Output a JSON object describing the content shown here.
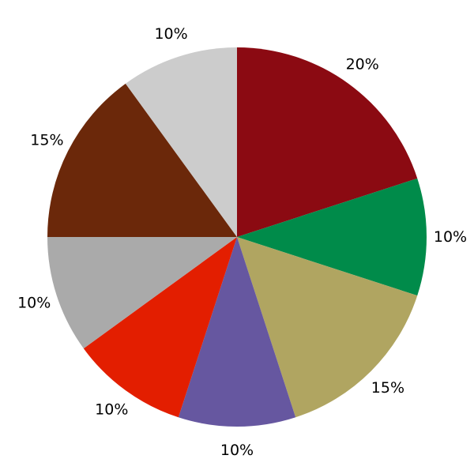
{
  "chart_data": {
    "type": "pie",
    "start_angle": "top",
    "direction": "clockwise",
    "slices": [
      {
        "label": "20%",
        "value": 20,
        "color": "#8B0A12"
      },
      {
        "label": "10%",
        "value": 10,
        "color": "#008B4A"
      },
      {
        "label": "15%",
        "value": 15,
        "color": "#B0A561"
      },
      {
        "label": "10%",
        "value": 10,
        "color": "#6657A0"
      },
      {
        "label": "10%",
        "value": 10,
        "color": "#E31E00"
      },
      {
        "label": "10%",
        "value": 10,
        "color": "#AAAAAA"
      },
      {
        "label": "15%",
        "value": 15,
        "color": "#6B280A"
      },
      {
        "label": "10%",
        "value": 10,
        "color": "#CCCCCC"
      }
    ]
  }
}
